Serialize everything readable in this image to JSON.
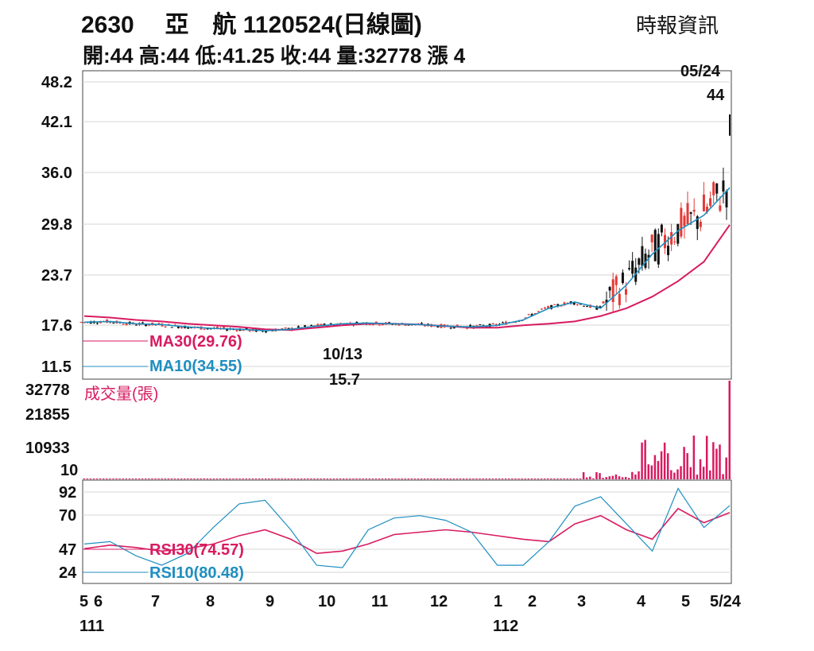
{
  "header": {
    "code": "2630",
    "name": "亞　航",
    "date_title": "1120524(日線圖)",
    "source": "時報資訊",
    "ohlc_line": "開:44 高:44 低:41.25 收:44 量:32778 漲 4"
  },
  "colors": {
    "up": "#e53935",
    "down": "#111111",
    "ma30": "#d81b60",
    "ma10": "#1f8fc0",
    "rsi30": "#d81b60",
    "rsi10": "#1f8fc0",
    "grid": "#cfcfcf",
    "volume": "#d81b60"
  },
  "chart_data": [
    {
      "type": "line",
      "panel": "price",
      "y_ticks": [
        "48.2",
        "42.1",
        "36.0",
        "29.8",
        "23.7",
        "17.6",
        "11.5"
      ],
      "ylim": [
        11.5,
        48.2
      ],
      "grid": true,
      "annotations": [
        {
          "label": "05/24",
          "value": "44"
        },
        {
          "label": "10/13",
          "value": "15.7"
        }
      ],
      "series": [
        {
          "name": "MA30(29.76)",
          "approx_values": [
            18.0,
            17.8,
            17.5,
            17.3,
            17.0,
            16.8,
            16.6,
            16.3,
            16.2,
            16.5,
            16.8,
            17.0,
            17.0,
            16.9,
            16.7,
            16.5,
            16.5,
            16.8,
            17.0,
            17.3,
            18.0,
            19.0,
            20.5,
            22.5,
            25.0,
            29.76
          ]
        },
        {
          "name": "MA10(34.55)",
          "approx_values": [
            17.2,
            17.3,
            17.0,
            16.9,
            16.6,
            16.4,
            16.3,
            16.1,
            16.3,
            16.7,
            17.0,
            17.1,
            17.0,
            16.9,
            16.7,
            16.6,
            16.8,
            17.5,
            19.0,
            19.8,
            19.0,
            22.0,
            26.0,
            29.0,
            31.0,
            34.55
          ]
        }
      ]
    },
    {
      "type": "bar",
      "panel": "volume",
      "title": "成交量(張)",
      "y_ticks": [
        "32778",
        "21855",
        "10933",
        "10"
      ],
      "ylim": [
        10,
        32778
      ],
      "last_value": 32778
    },
    {
      "type": "line",
      "panel": "rsi",
      "y_ticks": [
        "92",
        "70",
        "47",
        "24"
      ],
      "ylim": [
        24,
        92
      ],
      "series": [
        {
          "name": "RSI30(74.57)",
          "approx_values": [
            44,
            47,
            45,
            42,
            44,
            48,
            55,
            60,
            52,
            40,
            42,
            48,
            56,
            58,
            60,
            58,
            55,
            52,
            50,
            65,
            72,
            60,
            52,
            78,
            66,
            74.57
          ]
        },
        {
          "name": "RSI10(80.48)",
          "approx_values": [
            48,
            50,
            38,
            30,
            40,
            62,
            82,
            85,
            60,
            30,
            28,
            60,
            70,
            72,
            68,
            58,
            30,
            30,
            50,
            80,
            88,
            65,
            42,
            95,
            62,
            80.48
          ]
        }
      ]
    }
  ],
  "x_axis": {
    "month_labels": [
      "5",
      "6",
      "7",
      "8",
      "9",
      "10",
      "11",
      "12",
      "1",
      "2",
      "3",
      "4",
      "5",
      "5/24"
    ],
    "year_labels": [
      "111",
      "112"
    ]
  }
}
